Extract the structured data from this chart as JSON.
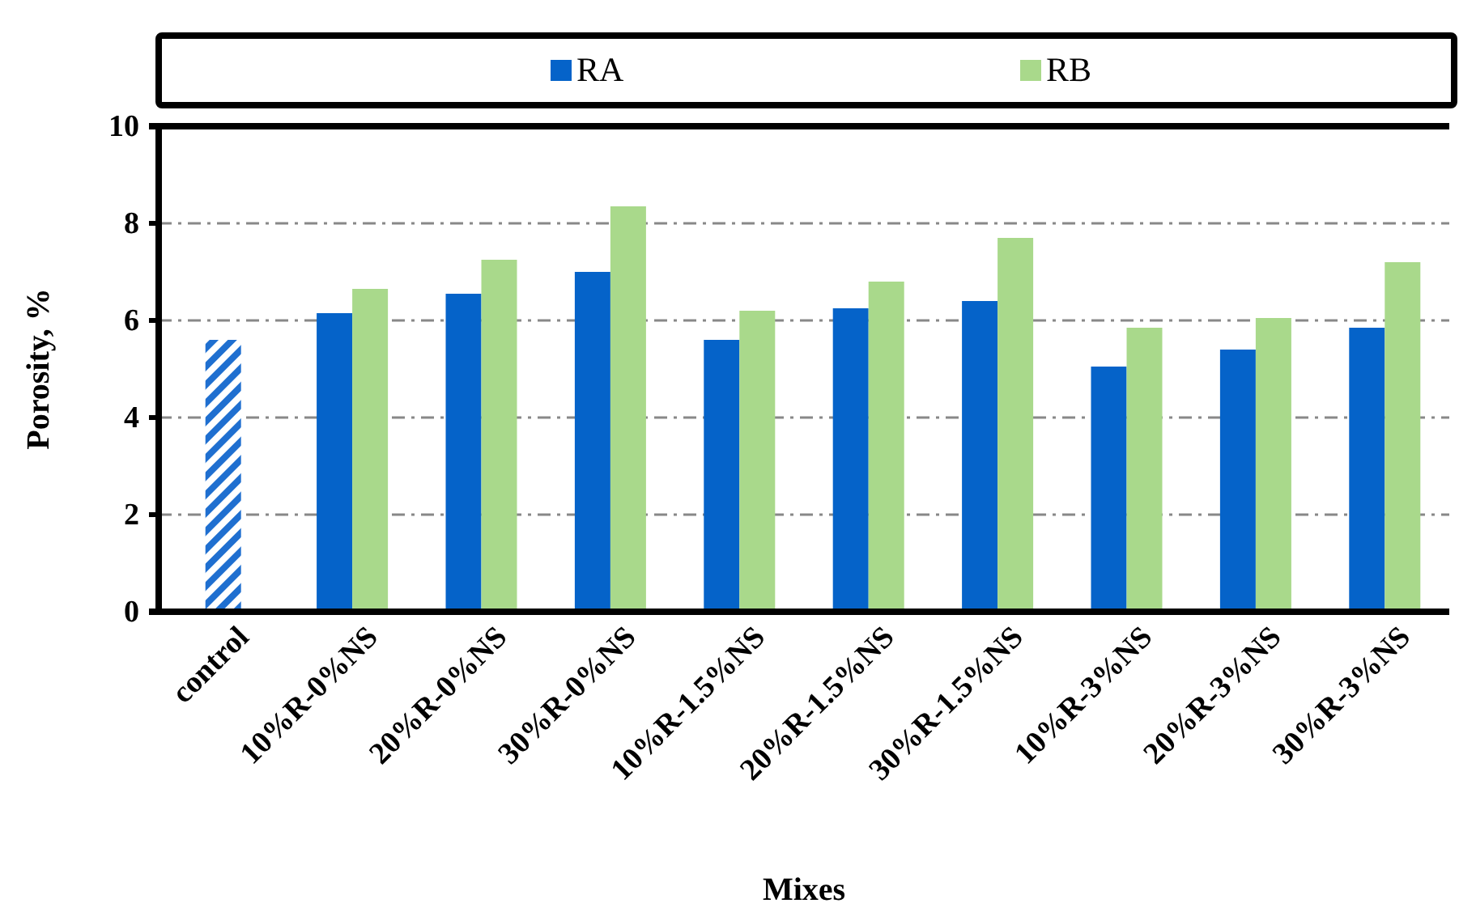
{
  "chart_data": {
    "type": "bar",
    "xlabel": "Mixes",
    "ylabel": "Porosity, %",
    "categories": [
      "control",
      "10%R-0%NS",
      "20%R-0%NS",
      "30%R-0%NS",
      "10%R-1.5%NS",
      "20%R-1.5%NS",
      "30%R-1.5%NS",
      "10%R-3%NS",
      "20%R-3%NS",
      "30%R-3%NS"
    ],
    "series": [
      {
        "color": "#1f6fd0",
        "values": [
          5.6,
          null,
          null,
          null,
          null,
          null,
          null,
          null,
          null,
          null
        ]
      },
      {
        "name": "RA",
        "color": "#0563c9",
        "values": [
          null,
          6.15,
          6.55,
          7.0,
          5.6,
          6.25,
          6.4,
          5.05,
          5.4,
          5.85
        ]
      },
      {
        "name": "RB",
        "color": "#a9d98b",
        "values": [
          null,
          6.65,
          7.25,
          8.35,
          6.2,
          6.8,
          7.7,
          5.85,
          6.05,
          7.2
        ]
      }
    ],
    "ylim": [
      0,
      10
    ],
    "yticks": [
      0,
      2,
      4,
      6,
      8,
      10
    ],
    "grid": "y",
    "legend": "top"
  }
}
